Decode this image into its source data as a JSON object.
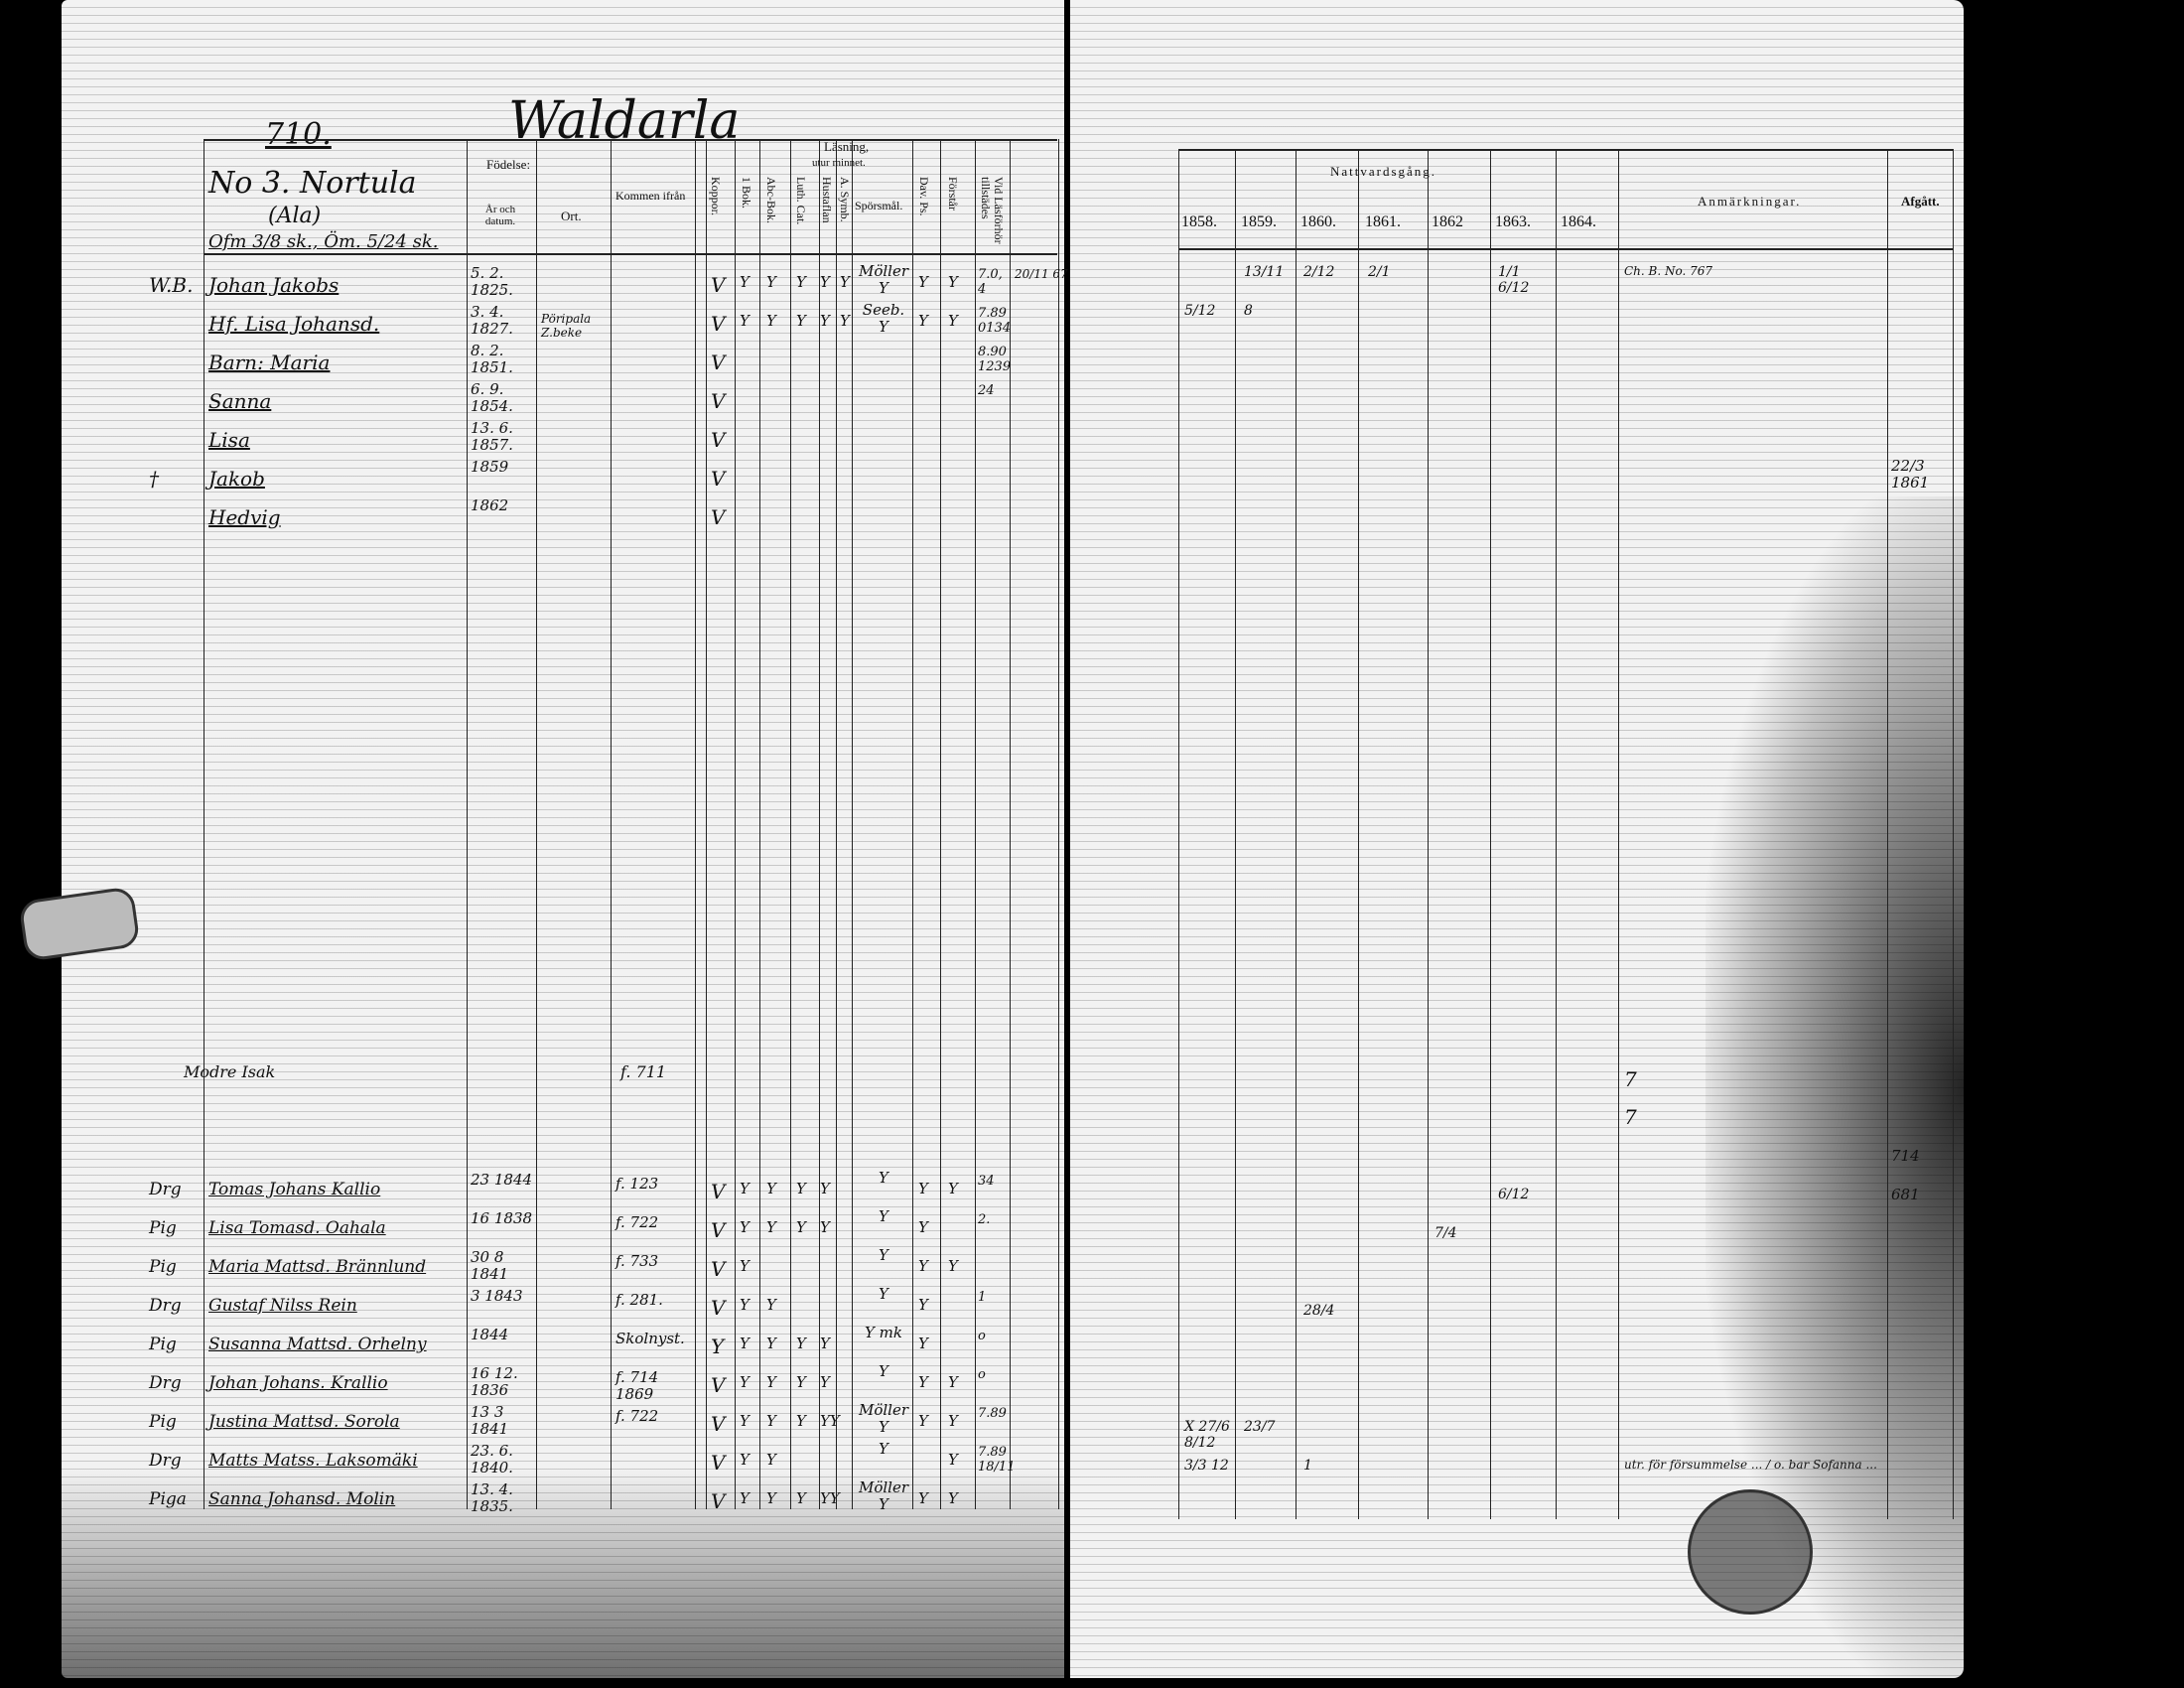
{
  "left_page": {
    "page_number": "710.",
    "village": "Waldarla",
    "household": "No 3. Nortula",
    "household_sub": "(Ala)",
    "household_tax": "Ofm 3/8 sk., Öm. 5/24 sk.",
    "headers": {
      "fodelse": "Födelse:",
      "ar_datum": "År och datum.",
      "ort": "Ort.",
      "kommen": "Kommen ifrån",
      "kopp": "Koppor.",
      "lasning": "Läsning,",
      "utur_minnet": "utur minnet.",
      "bok1": "1 Bok.",
      "abc": "Abc-Bok.",
      "luth": "Luth. Cat.",
      "hustaflan": "Hustaflan",
      "symb": "A. Symb.",
      "spors": "Spörsmål.",
      "dav": "Dav. Ps.",
      "forstar": "Förstår",
      "lasforhor": "Vid Läsförhör tillstädes"
    },
    "family": [
      {
        "prefix": "W.B.",
        "name": "Johan Jakobs",
        "birth": "5. 2. 1825.",
        "ort": "",
        "kommen": "",
        "kopp": "V",
        "marks": [
          "Y",
          "Y",
          "Y",
          "Y",
          "Y",
          "Möller Y",
          "Y",
          "Y"
        ],
        "lasf": "7.0, 4",
        "extra": "20/11 67"
      },
      {
        "prefix": "",
        "name": "Hf. Lisa Johansd.",
        "birth": "3. 4. 1827.",
        "ort": "Pöripala Z.beke",
        "kommen": "",
        "kopp": "V",
        "marks": [
          "Y",
          "Y",
          "Y",
          "Y",
          "Y",
          "Seeb. Y",
          "Y",
          "Y"
        ],
        "lasf": "7.89 0134",
        "extra": ""
      },
      {
        "prefix": "",
        "name": "Barn: Maria",
        "birth": "8. 2. 1851.",
        "ort": "",
        "kommen": "",
        "kopp": "V",
        "marks": [
          "",
          "",
          "",
          "",
          "",
          "",
          "",
          ""
        ],
        "lasf": "8.90 1239",
        "extra": ""
      },
      {
        "prefix": "",
        "name": "Sanna",
        "birth": "6. 9. 1854.",
        "ort": "",
        "kommen": "",
        "kopp": "V",
        "marks": [
          "",
          "",
          "",
          "",
          "",
          "",
          "",
          ""
        ],
        "lasf": "24",
        "extra": ""
      },
      {
        "prefix": "",
        "name": "Lisa",
        "birth": "13. 6. 1857.",
        "ort": "",
        "kommen": "",
        "kopp": "V",
        "marks": [
          "",
          "",
          "",
          "",
          "",
          "",
          "",
          ""
        ],
        "lasf": "",
        "extra": ""
      },
      {
        "prefix": "†",
        "name": "Jakob",
        "birth": "1859",
        "ort": "",
        "kommen": "",
        "kopp": "V",
        "marks": [
          "",
          "",
          "",
          "",
          "",
          "",
          "",
          ""
        ],
        "lasf": "",
        "extra": ""
      },
      {
        "prefix": "",
        "name": "Hedvig",
        "birth": "1862",
        "ort": "",
        "kommen": "",
        "kopp": "V",
        "marks": [
          "",
          "",
          "",
          "",
          "",
          "",
          "",
          ""
        ],
        "lasf": "",
        "extra": ""
      }
    ],
    "note": {
      "name": "Modre Isak",
      "kommen": "f. 711"
    },
    "servants": [
      {
        "prefix": "Drg",
        "name": "Tomas Johans Kallio",
        "birth": "23 1844",
        "kommen": "f. 123",
        "kopp": "V",
        "marks": [
          "Y",
          "Y",
          "Y",
          "Y",
          "Y",
          "Y",
          "Y"
        ],
        "lasf": "34"
      },
      {
        "prefix": "Pig",
        "name": "Lisa Tomasd. Oahala",
        "birth": "16 1838",
        "kommen": "f. 722",
        "kopp": "V",
        "marks": [
          "Y",
          "Y",
          "Y",
          "Y",
          "Y",
          "Y",
          ""
        ],
        "lasf": "2."
      },
      {
        "prefix": "Pig",
        "name": "Maria Mattsd. Brännlund",
        "birth": "30 8 1841",
        "kommen": "f. 733",
        "kopp": "V",
        "marks": [
          "Y",
          "",
          "",
          "",
          "Y",
          "Y",
          "Y"
        ],
        "lasf": ""
      },
      {
        "prefix": "Drg",
        "name": "Gustaf Nilss Rein",
        "birth": "3 1843",
        "kommen": "f. 281.",
        "kopp": "V",
        "marks": [
          "Y",
          "Y",
          "",
          "",
          "Y",
          "Y",
          ""
        ],
        "lasf": "1"
      },
      {
        "prefix": "Pig",
        "name": "Susanna Mattsd. Orhelny",
        "birth": "1844",
        "kommen": "Skolnyst.",
        "kopp": "Y",
        "marks": [
          "Y",
          "Y",
          "Y",
          "Y",
          "Y mk",
          "Y",
          ""
        ],
        "lasf": "o"
      },
      {
        "prefix": "Drg",
        "name": "Johan Johans. Krallio",
        "birth": "16 12. 1836",
        "kommen": "f. 714 1869",
        "kopp": "V",
        "marks": [
          "Y",
          "Y",
          "Y",
          "Y",
          "Y",
          "Y",
          "Y"
        ],
        "lasf": "o"
      },
      {
        "prefix": "Pig",
        "name": "Justina Mattsd. Sorola",
        "birth": "13 3 1841",
        "kommen": "f. 722",
        "kopp": "V",
        "marks": [
          "Y",
          "Y",
          "Y",
          "YY",
          "Möller Y",
          "Y",
          "Y"
        ],
        "lasf": "7.89"
      },
      {
        "prefix": "Drg",
        "name": "Matts Matss. Laksomäki",
        "birth": "23. 6. 1840.",
        "kommen": "",
        "kopp": "V",
        "marks": [
          "Y",
          "Y",
          "",
          "",
          "Y",
          "",
          "Y"
        ],
        "lasf": "7.89 18/11"
      },
      {
        "prefix": "Piga",
        "name": "Sanna Johansd. Molin",
        "birth": "13. 4. 1835.",
        "kommen": "",
        "kopp": "V",
        "marks": [
          "Y",
          "Y",
          "Y",
          "YY",
          "Möller Y",
          "Y",
          "Y"
        ],
        "lasf": ""
      }
    ]
  },
  "right_page": {
    "nattvard_header": "Nattvardsgång.",
    "years": [
      "1858.",
      "1859.",
      "1860.",
      "1861.",
      "1862",
      "1863.",
      "1864."
    ],
    "anmarkningar_header": "Anmärkningar.",
    "afgatt_header": "Afgått.",
    "family_rows": [
      {
        "years": [
          "",
          "13/11",
          "2/12",
          "2/1",
          "",
          "1/1 6/12",
          ""
        ],
        "anm": "Ch. B. No. 767",
        "afg": ""
      },
      {
        "years": [
          "5/12",
          "8",
          "",
          "",
          "",
          "",
          ""
        ],
        "anm": "",
        "afg": ""
      },
      {
        "years": [
          "",
          "",
          "",
          "",
          "",
          "",
          ""
        ],
        "anm": "",
        "afg": ""
      },
      {
        "years": [
          "",
          "",
          "",
          "",
          "",
          "",
          ""
        ],
        "anm": "",
        "afg": ""
      },
      {
        "years": [
          "",
          "",
          "",
          "",
          "",
          "",
          ""
        ],
        "anm": "",
        "afg": ""
      },
      {
        "years": [
          "",
          "",
          "",
          "",
          "",
          "",
          ""
        ],
        "anm": "",
        "afg": "22/3 1861"
      },
      {
        "years": [
          "",
          "",
          "",
          "",
          "",
          "",
          ""
        ],
        "anm": "",
        "afg": ""
      }
    ],
    "note_marks": [
      "7",
      "7"
    ],
    "servant_rows": [
      {
        "years": [
          "",
          "",
          "",
          "",
          "",
          "",
          ""
        ],
        "anm": "",
        "afg": "714"
      },
      {
        "years": [
          "",
          "",
          "",
          "",
          "",
          "6/12",
          ""
        ],
        "anm": "",
        "afg": "681"
      },
      {
        "years": [
          "",
          "",
          "",
          "",
          "7/4",
          "",
          ""
        ],
        "anm": "",
        "afg": ""
      },
      {
        "years": [
          "",
          "",
          "",
          "",
          "",
          "",
          ""
        ],
        "anm": "",
        "afg": ""
      },
      {
        "years": [
          "",
          "",
          "28/4",
          "",
          "",
          "",
          ""
        ],
        "anm": "",
        "afg": ""
      },
      {
        "years": [
          "",
          "",
          "",
          "",
          "",
          "",
          ""
        ],
        "anm": "",
        "afg": ""
      },
      {
        "years": [
          "",
          "",
          "",
          "",
          "",
          "",
          ""
        ],
        "anm": "",
        "afg": ""
      },
      {
        "years": [
          "X 27/6 8/12",
          "23/7",
          "",
          "",
          "",
          "",
          ""
        ],
        "anm": "",
        "afg": ""
      },
      {
        "years": [
          "3/3 12",
          "",
          "1",
          "",
          "",
          "",
          ""
        ],
        "anm": "utr. för försummelse ... / o. bar Sofanna ...",
        "afg": ""
      }
    ]
  }
}
